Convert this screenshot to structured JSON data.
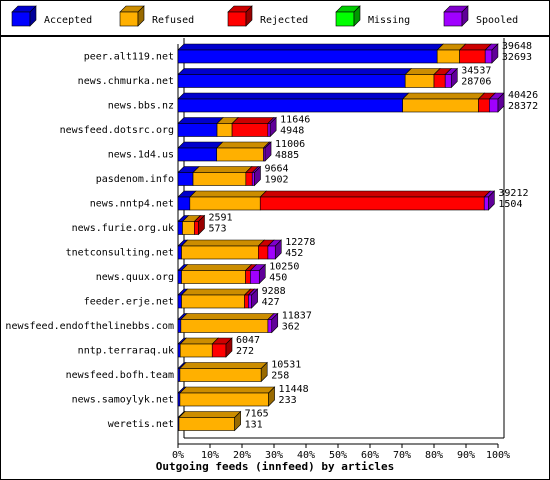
{
  "chart_data": {
    "type": "stacked-bar-3d",
    "x_label": "Outgoing feeds (innfeed) by articles",
    "categories": [
      "peer.alt119.net",
      "news.chmurka.net",
      "news.bbs.nz",
      "newsfeed.dotsrc.org",
      "news.1d4.us",
      "pasdenom.info",
      "news.nntp4.net",
      "news.furie.org.uk",
      "tnetconsulting.net",
      "news.quux.org",
      "feeder.erje.net",
      "newsfeed.endofthelinebbs.com",
      "nntp.terraraq.uk",
      "newsfeed.bofh.team",
      "news.samoylyk.net",
      "weretis.net"
    ],
    "series": [
      {
        "name": "Accepted",
        "color": "#0000ff",
        "values": [
          81,
          71,
          70.2,
          12.2,
          12.1,
          4.7,
          3.7,
          1.4,
          1.1,
          1.1,
          1.1,
          0.9,
          0.7,
          0.6,
          0.6,
          0.3
        ]
      },
      {
        "name": "Refused",
        "color": "#ffb000",
        "values": [
          7,
          9,
          23.7,
          4.7,
          14.6,
          16.5,
          22,
          3.7,
          24,
          20,
          19.7,
          27.2,
          10,
          25.4,
          27.7,
          17.4
        ]
      },
      {
        "name": "Rejected",
        "color": "#ff0000",
        "values": [
          8,
          3.5,
          3.4,
          11.2,
          0,
          2,
          70,
          1.3,
          3,
          1.5,
          1.2,
          0,
          4.3,
          0,
          0,
          0
        ]
      },
      {
        "name": "Missing",
        "color": "#00ff00",
        "values": [
          0,
          0,
          0,
          0,
          0,
          0,
          0,
          0,
          0,
          0,
          0,
          0,
          0,
          0,
          0,
          0
        ]
      },
      {
        "name": "Spooled",
        "color": "#a000ff",
        "values": [
          2.1,
          1.9,
          2.7,
          0.7,
          0.5,
          0.7,
          1.3,
          0,
          2.3,
          2.8,
          1,
          1.2,
          0,
          0,
          0,
          0
        ]
      }
    ],
    "offered": [
      39648,
      34537,
      40426,
      11646,
      11006,
      9664,
      39212,
      2591,
      12278,
      10250,
      9288,
      11837,
      6047,
      10531,
      11448,
      7165
    ],
    "accepted": [
      32693,
      28706,
      28372,
      4948,
      4885,
      1902,
      1504,
      573,
      452,
      450,
      427,
      362,
      272,
      258,
      233,
      131
    ],
    "xlim": [
      0,
      100
    ],
    "xticks": [
      {
        "value": 0,
        "label": "0%"
      },
      {
        "value": 10,
        "label": "10%"
      },
      {
        "value": 20,
        "label": "20%"
      },
      {
        "value": 30,
        "label": "30%"
      },
      {
        "value": 40,
        "label": "40%"
      },
      {
        "value": 50,
        "label": "50%"
      },
      {
        "value": 60,
        "label": "60%"
      },
      {
        "value": 70,
        "label": "70%"
      },
      {
        "value": 80,
        "label": "80%"
      },
      {
        "value": 90,
        "label": "90%"
      },
      {
        "value": 100,
        "label": "100%"
      }
    ]
  }
}
